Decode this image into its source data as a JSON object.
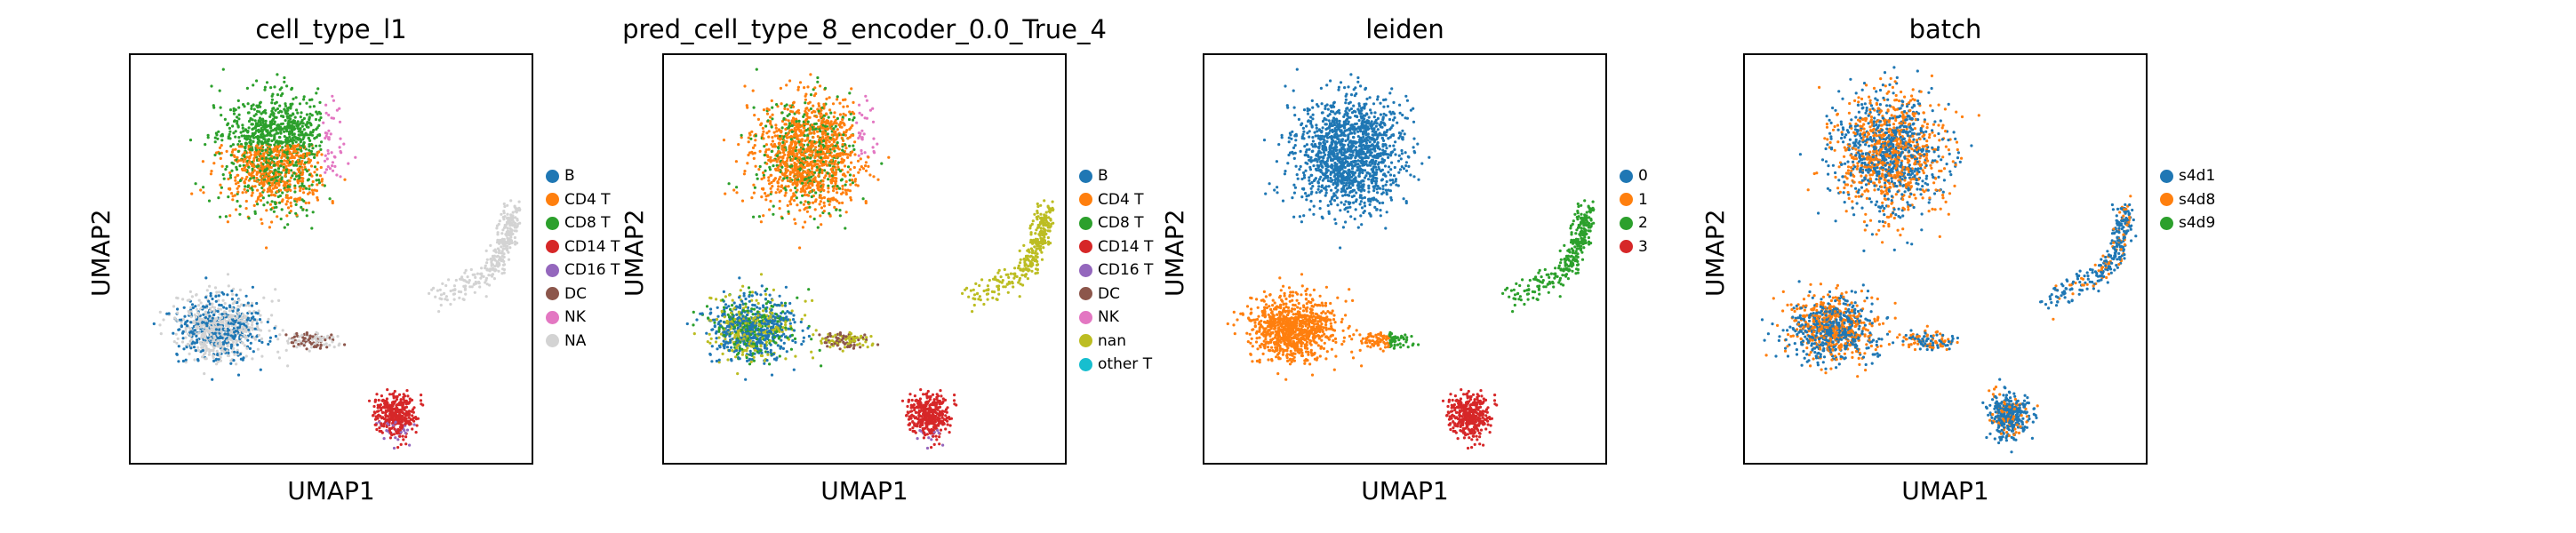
{
  "chart_data": [
    {
      "type": "scatter",
      "title": "cell_type_l1",
      "xlabel": "UMAP1",
      "ylabel": "UMAP2",
      "legend_placement": "right",
      "categories": [
        "B",
        "CD4 T",
        "CD8 T",
        "CD14 T",
        "CD16 T",
        "DC",
        "NK",
        "NA"
      ],
      "colors": [
        "#1f77b4",
        "#ff7f0e",
        "#2ca02c",
        "#d62728",
        "#9467bd",
        "#8c564b",
        "#e377c2",
        "#d3d3d3"
      ]
    },
    {
      "type": "scatter",
      "title": "pred_cell_type_8_encoder_0.0_True_4",
      "xlabel": "UMAP1",
      "ylabel": "UMAP2",
      "legend_placement": "right",
      "categories": [
        "B",
        "CD4 T",
        "CD8 T",
        "CD14 T",
        "CD16 T",
        "DC",
        "NK",
        "nan",
        "other T"
      ],
      "colors": [
        "#1f77b4",
        "#ff7f0e",
        "#2ca02c",
        "#d62728",
        "#9467bd",
        "#8c564b",
        "#e377c2",
        "#bcbd22",
        "#17becf"
      ]
    },
    {
      "type": "scatter",
      "title": "leiden",
      "xlabel": "UMAP1",
      "ylabel": "UMAP2",
      "legend_placement": "right",
      "categories": [
        "0",
        "1",
        "2",
        "3"
      ],
      "colors": [
        "#1f77b4",
        "#ff7f0e",
        "#2ca02c",
        "#d62728"
      ]
    },
    {
      "type": "scatter",
      "title": "batch",
      "xlabel": "UMAP1",
      "ylabel": "UMAP2",
      "legend_placement": "right",
      "categories": [
        "s4d1",
        "s4d8",
        "s4d9"
      ],
      "colors": [
        "#1f77b4",
        "#ff7f0e",
        "#2ca02c"
      ]
    }
  ]
}
